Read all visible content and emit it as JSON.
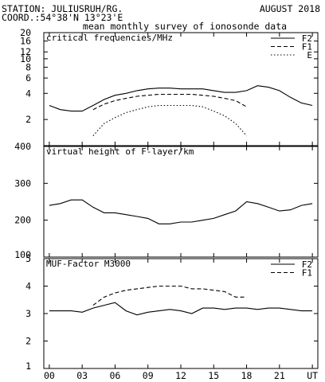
{
  "header": {
    "station": "STATION: JULIUSRUH/RG.",
    "date": "AUGUST 2018",
    "coord": "COORD.:54°38'N 13°23'E",
    "subtitle": "mean monthly survey of ionosonde data"
  },
  "chart_data": [
    {
      "type": "line",
      "title": "critical frequencies/MHz",
      "yscale": "log",
      "ylim": [
        1,
        20
      ],
      "yticks": [
        2,
        4,
        6,
        8,
        10,
        12,
        16,
        20
      ],
      "xlim": [
        -0.5,
        24.5
      ],
      "xticks": [
        0,
        3,
        6,
        9,
        12,
        15,
        18,
        21,
        24
      ],
      "xticklabels": [
        "00",
        "03",
        "06",
        "09",
        "12",
        "15",
        "18",
        "21",
        "UT"
      ],
      "legend_position": "top-right",
      "series": [
        {
          "name": "F2",
          "style": "solid",
          "x": [
            0,
            1,
            2,
            3,
            4,
            5,
            6,
            7,
            8,
            9,
            10,
            11,
            12,
            13,
            14,
            15,
            16,
            17,
            18,
            19,
            20,
            21,
            22,
            23,
            24
          ],
          "y": [
            2.9,
            2.6,
            2.5,
            2.5,
            2.9,
            3.4,
            3.8,
            4.0,
            4.3,
            4.5,
            4.6,
            4.6,
            4.5,
            4.5,
            4.5,
            4.3,
            4.1,
            4.1,
            4.3,
            4.9,
            4.7,
            4.3,
            3.6,
            3.1,
            2.9
          ]
        },
        {
          "name": "F1",
          "style": "dashed",
          "x": [
            4,
            5,
            6,
            7,
            8,
            9,
            10,
            11,
            12,
            13,
            14,
            15,
            16,
            17,
            18
          ],
          "y": [
            2.6,
            3.0,
            3.3,
            3.5,
            3.7,
            3.8,
            3.9,
            3.9,
            3.9,
            3.9,
            3.8,
            3.7,
            3.5,
            3.3,
            2.8
          ]
        },
        {
          "name": "E",
          "style": "dotted",
          "x": [
            4,
            5,
            6,
            7,
            8,
            9,
            10,
            11,
            12,
            13,
            14,
            15,
            16,
            17,
            18
          ],
          "y": [
            1.3,
            1.8,
            2.1,
            2.4,
            2.6,
            2.8,
            2.9,
            2.9,
            2.9,
            2.9,
            2.8,
            2.5,
            2.2,
            1.8,
            1.3
          ]
        }
      ]
    },
    {
      "type": "line",
      "title": "virtual height of F-layer/km",
      "ylim": [
        100,
        400
      ],
      "yticks": [
        100,
        200,
        300,
        400
      ],
      "xlim": [
        -0.5,
        24.5
      ],
      "xticks": [
        0,
        3,
        6,
        9,
        12,
        15,
        18,
        21,
        24
      ],
      "series": [
        {
          "style": "solid",
          "x": [
            0,
            1,
            2,
            3,
            4,
            5,
            6,
            7,
            8,
            9,
            10,
            11,
            12,
            13,
            14,
            15,
            16,
            17,
            18,
            19,
            20,
            21,
            22,
            23,
            24
          ],
          "y": [
            240,
            245,
            255,
            255,
            235,
            220,
            220,
            215,
            210,
            205,
            190,
            190,
            195,
            195,
            200,
            205,
            215,
            225,
            250,
            245,
            235,
            225,
            228,
            240,
            245
          ]
        }
      ]
    },
    {
      "type": "line",
      "title": "MUF-Factor M3000",
      "ylim": [
        1,
        5
      ],
      "yticks": [
        1,
        2,
        3,
        4,
        5
      ],
      "xlim": [
        -0.5,
        24.5
      ],
      "xticks": [
        0,
        3,
        6,
        9,
        12,
        15,
        18,
        21,
        24
      ],
      "legend_position": "top-right",
      "series": [
        {
          "name": "F2",
          "style": "solid",
          "x": [
            0,
            1,
            2,
            3,
            4,
            5,
            6,
            7,
            8,
            9,
            10,
            11,
            12,
            13,
            14,
            15,
            16,
            17,
            18,
            19,
            20,
            21,
            22,
            23,
            24
          ],
          "y": [
            3.1,
            3.1,
            3.1,
            3.05,
            3.2,
            3.3,
            3.4,
            3.1,
            2.95,
            3.05,
            3.1,
            3.15,
            3.1,
            3.0,
            3.2,
            3.2,
            3.15,
            3.2,
            3.2,
            3.15,
            3.2,
            3.2,
            3.15,
            3.1,
            3.1
          ]
        },
        {
          "name": "F1",
          "style": "dashed",
          "x": [
            4,
            5,
            6,
            7,
            8,
            9,
            10,
            11,
            12,
            13,
            14,
            15,
            16,
            17,
            18
          ],
          "y": [
            3.3,
            3.6,
            3.75,
            3.85,
            3.9,
            3.95,
            4.0,
            4.0,
            4.0,
            3.9,
            3.9,
            3.85,
            3.8,
            3.6,
            3.6
          ]
        }
      ]
    }
  ]
}
